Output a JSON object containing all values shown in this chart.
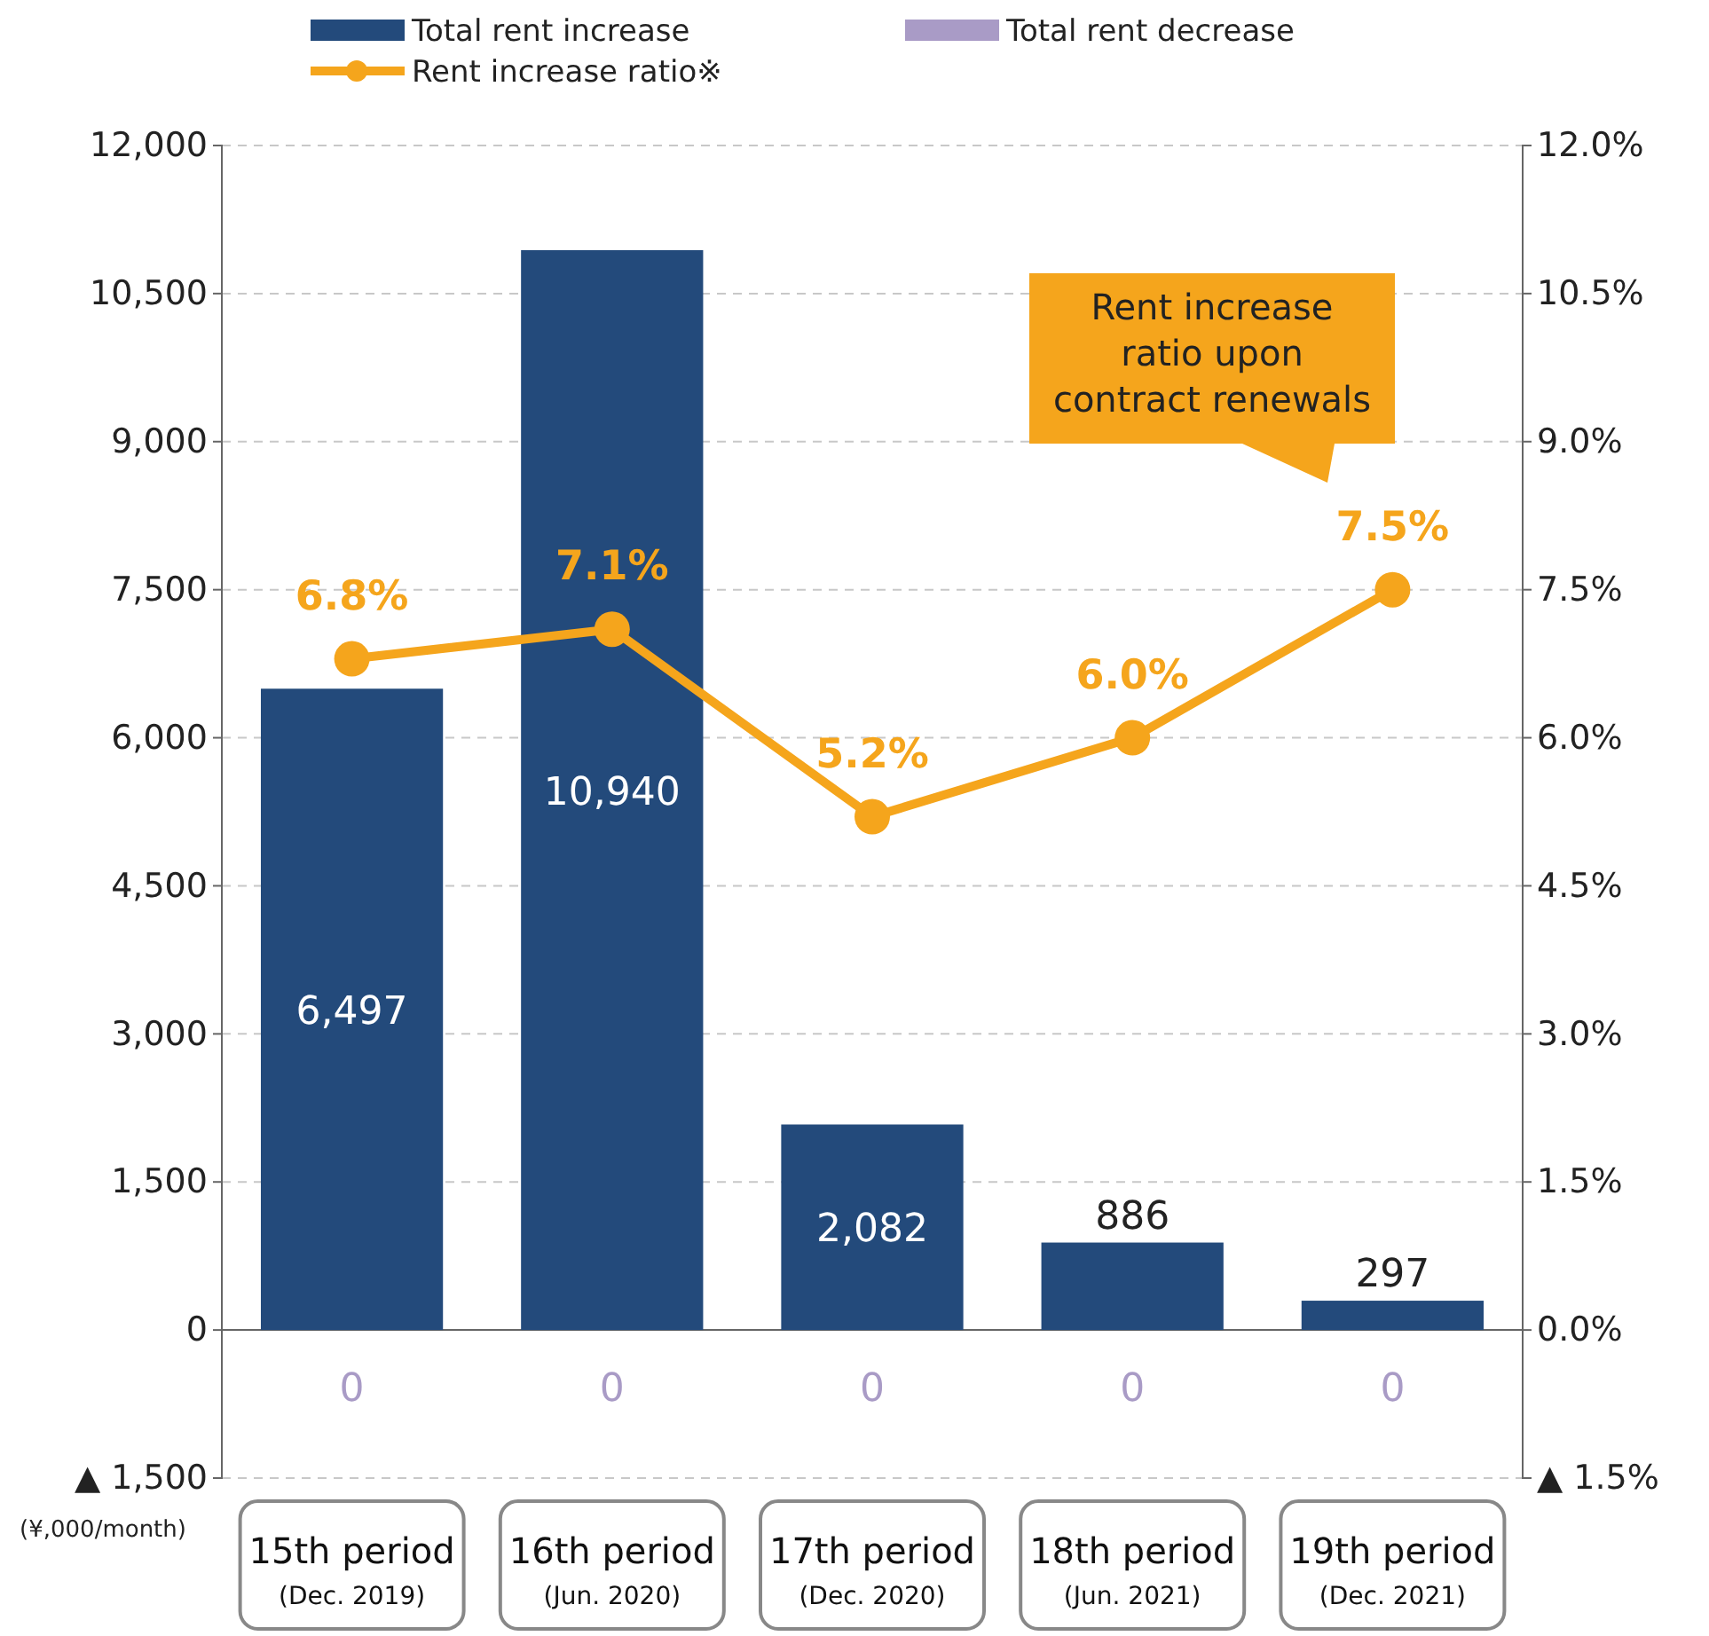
{
  "chart_data": {
    "type": "bar",
    "categories": [
      "15th period\n(Dec. 2019)",
      "16th period\n(Jun. 2020)",
      "17th period\n(Dec. 2020)",
      "18th period\n(Jun. 2021)",
      "19th period\n(Dec. 2021)"
    ],
    "series": [
      {
        "name": "Total rent increase",
        "color": "#234a7b",
        "values": [
          6497,
          10940,
          2082,
          886,
          297
        ],
        "value_labels": [
          "6,497",
          "10,940",
          "2,082",
          "886",
          "297"
        ]
      },
      {
        "name": "Total rent decrease",
        "color": "#a99bc6",
        "values": [
          0,
          0,
          0,
          0,
          0
        ],
        "value_labels": [
          "0",
          "0",
          "0",
          "0",
          "0"
        ]
      },
      {
        "name": "Rent increase ratio※",
        "type": "line",
        "axis": "y2",
        "color": "#f5a51c",
        "marker": "circle",
        "values": [
          6.8,
          7.1,
          5.2,
          6.0,
          7.5
        ],
        "value_labels": [
          "6.8%",
          "7.1%",
          "5.2%",
          "6.0%",
          "7.5%"
        ]
      }
    ],
    "ylim": [
      -1500,
      12000
    ],
    "yticks": [
      {
        "value": -1500,
        "label": "▲ 1,500"
      },
      {
        "value": 0,
        "label": "0"
      },
      {
        "value": 1500,
        "label": "1,500"
      },
      {
        "value": 3000,
        "label": "3,000"
      },
      {
        "value": 4500,
        "label": "4,500"
      },
      {
        "value": 6000,
        "label": "6,000"
      },
      {
        "value": 7500,
        "label": "7,500"
      },
      {
        "value": 9000,
        "label": "9,000"
      },
      {
        "value": 10500,
        "label": "10,500"
      },
      {
        "value": 12000,
        "label": "12,000"
      }
    ],
    "y2lim": [
      -1.5,
      12
    ],
    "y2ticks": [
      {
        "value": -1.5,
        "label": "▲ 1.5%"
      },
      {
        "value": 0,
        "label": "0.0%"
      },
      {
        "value": 1.5,
        "label": "1.5%"
      },
      {
        "value": 3,
        "label": "3.0%"
      },
      {
        "value": 4.5,
        "label": "4.5%"
      },
      {
        "value": 6,
        "label": "6.0%"
      },
      {
        "value": 7.5,
        "label": "7.5%"
      },
      {
        "value": 9,
        "label": "9.0%"
      },
      {
        "value": 10.5,
        "label": "10.5%"
      },
      {
        "value": 12,
        "label": "12.0%"
      }
    ],
    "grid": "y",
    "legend": "top left",
    "annotations": [
      "(¥,000/month)",
      "Rent increase ratio upon contract renewals"
    ]
  }
}
